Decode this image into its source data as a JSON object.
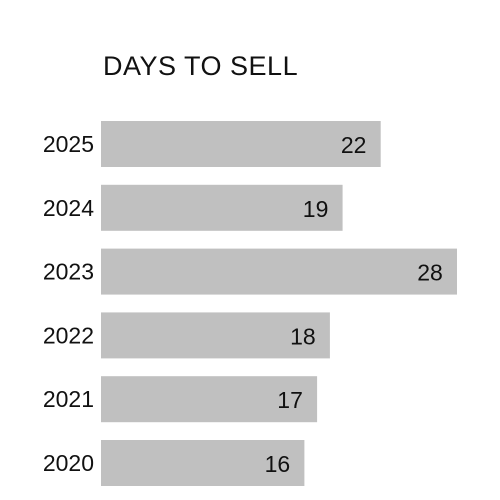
{
  "chart_data": {
    "type": "bar",
    "orientation": "horizontal",
    "title": "DAYS TO SELL",
    "categories": [
      "2025",
      "2024",
      "2023",
      "2022",
      "2021",
      "2020"
    ],
    "values": [
      22,
      19,
      28,
      18,
      17,
      16
    ],
    "xlim": [
      0,
      28
    ],
    "grid": false,
    "legend": "none",
    "data_labels": true,
    "colors": {
      "bar": "#c0c0c0",
      "text": "#111111",
      "background": "#ffffff"
    }
  }
}
